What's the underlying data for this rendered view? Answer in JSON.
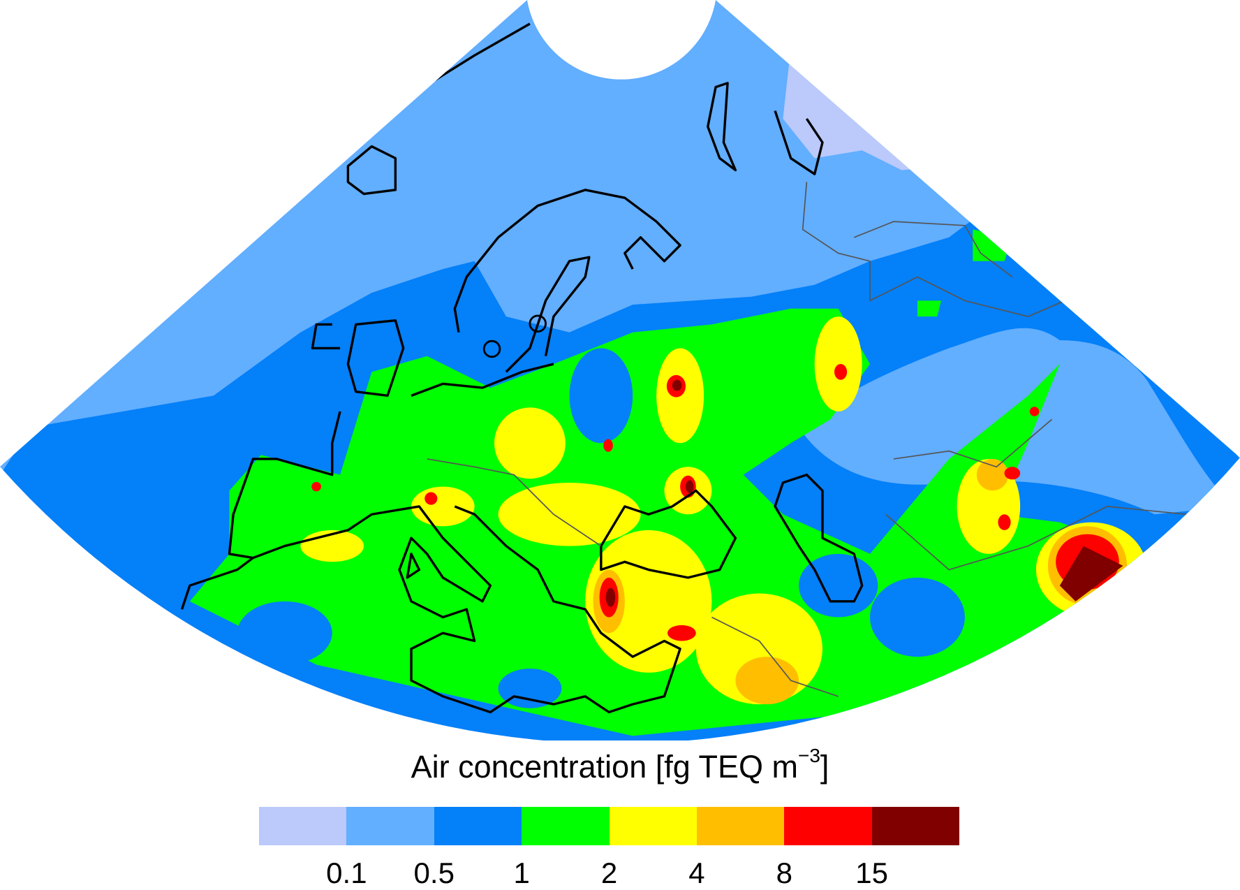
{
  "legend": {
    "title_main": "Air concentration [fg TEQ m",
    "title_sup": "−3",
    "title_end": "]",
    "ticks": [
      "0.1",
      "0.5",
      "1",
      "2",
      "4",
      "8",
      "15"
    ],
    "colors": [
      "#BBC9FB",
      "#62AEFF",
      "#0480F8",
      "#00FF00",
      "#FFFF00",
      "#FFBF00",
      "#FF0000",
      "#800000"
    ]
  }
}
